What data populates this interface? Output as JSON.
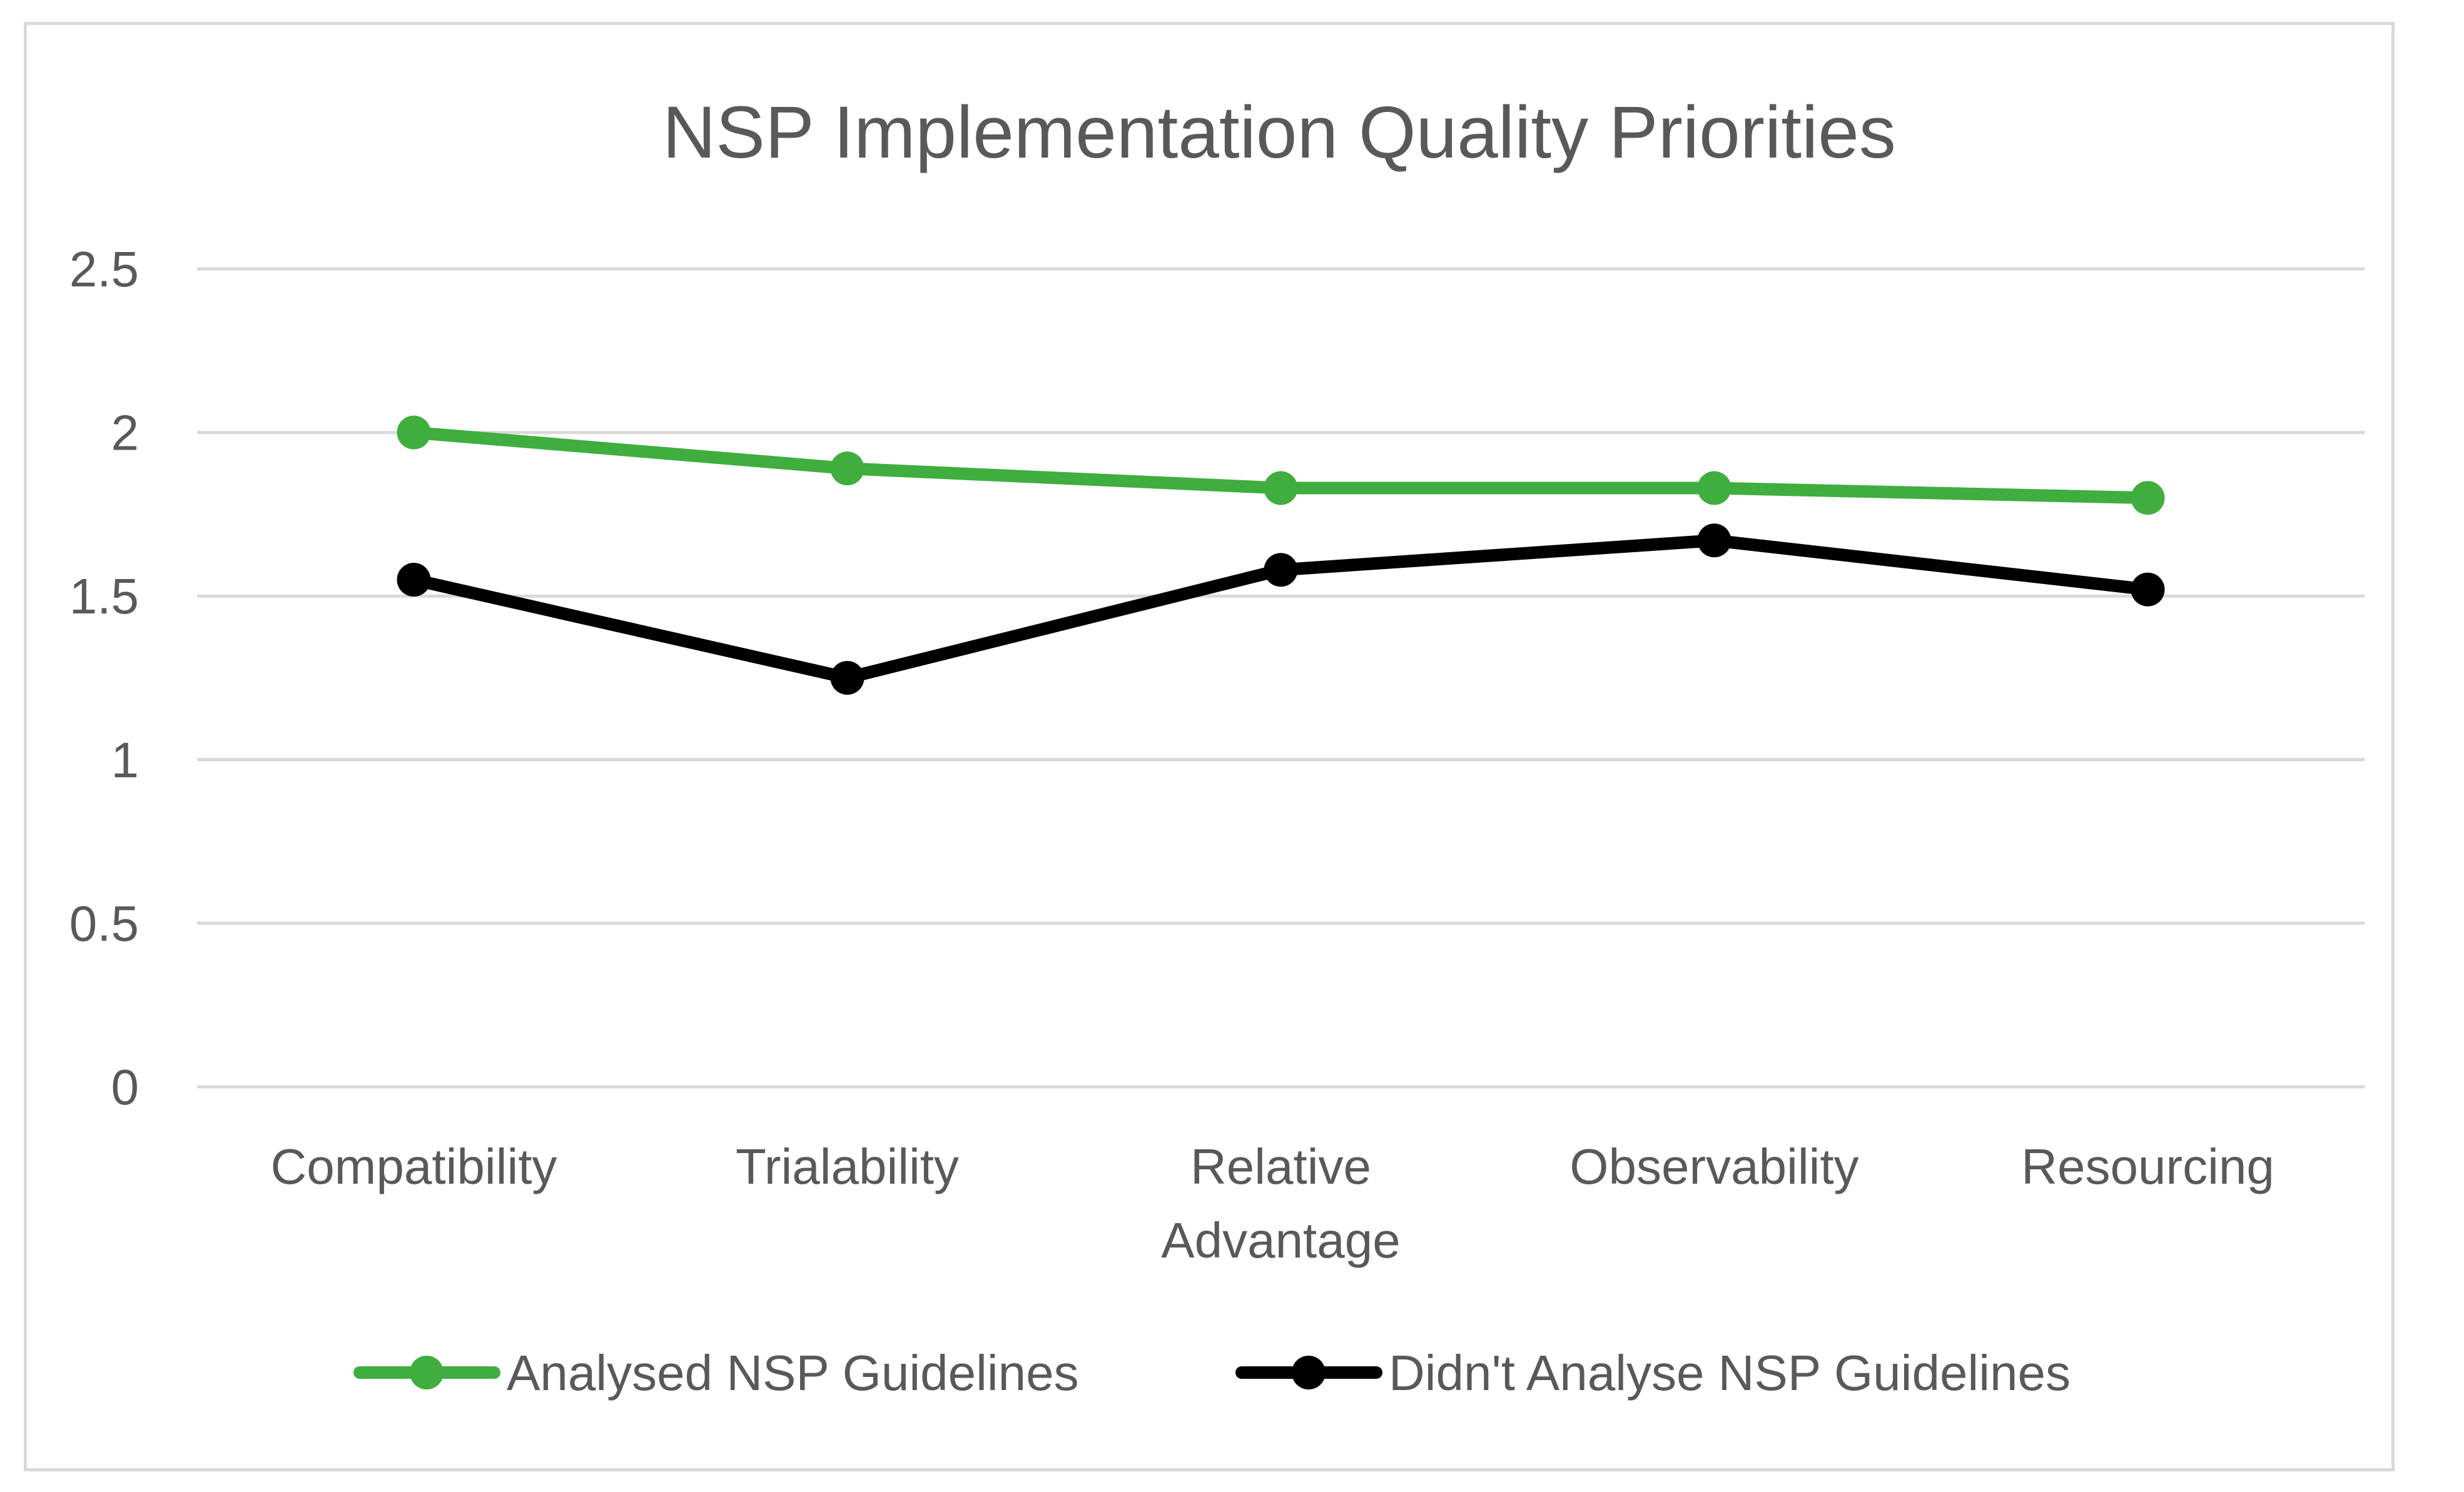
{
  "chart_data": {
    "type": "line",
    "title": "NSP Implementation Quality Priorities",
    "xlabel": "",
    "ylabel": "",
    "ylim": [
      0,
      2.5
    ],
    "yticks": [
      "0",
      "0.5",
      "1",
      "1.5",
      "2",
      "2.5"
    ],
    "ytick_values": [
      0,
      0.5,
      1,
      1.5,
      2,
      2.5
    ],
    "categories": [
      [
        "Compatibility"
      ],
      [
        "Trialability"
      ],
      [
        "Relative",
        "Advantage"
      ],
      [
        "Observability"
      ],
      [
        "Resourcing"
      ]
    ],
    "grid": true,
    "legend_position": "bottom",
    "series": [
      {
        "name": "Analysed NSP Guidelines",
        "color": "#3fae3f",
        "values": [
          2.0,
          1.89,
          1.83,
          1.83,
          1.8
        ]
      },
      {
        "name": "Didn't Analyse NSP Guidelines",
        "color": "#000000",
        "values": [
          1.55,
          1.25,
          1.58,
          1.67,
          1.52
        ]
      }
    ]
  }
}
